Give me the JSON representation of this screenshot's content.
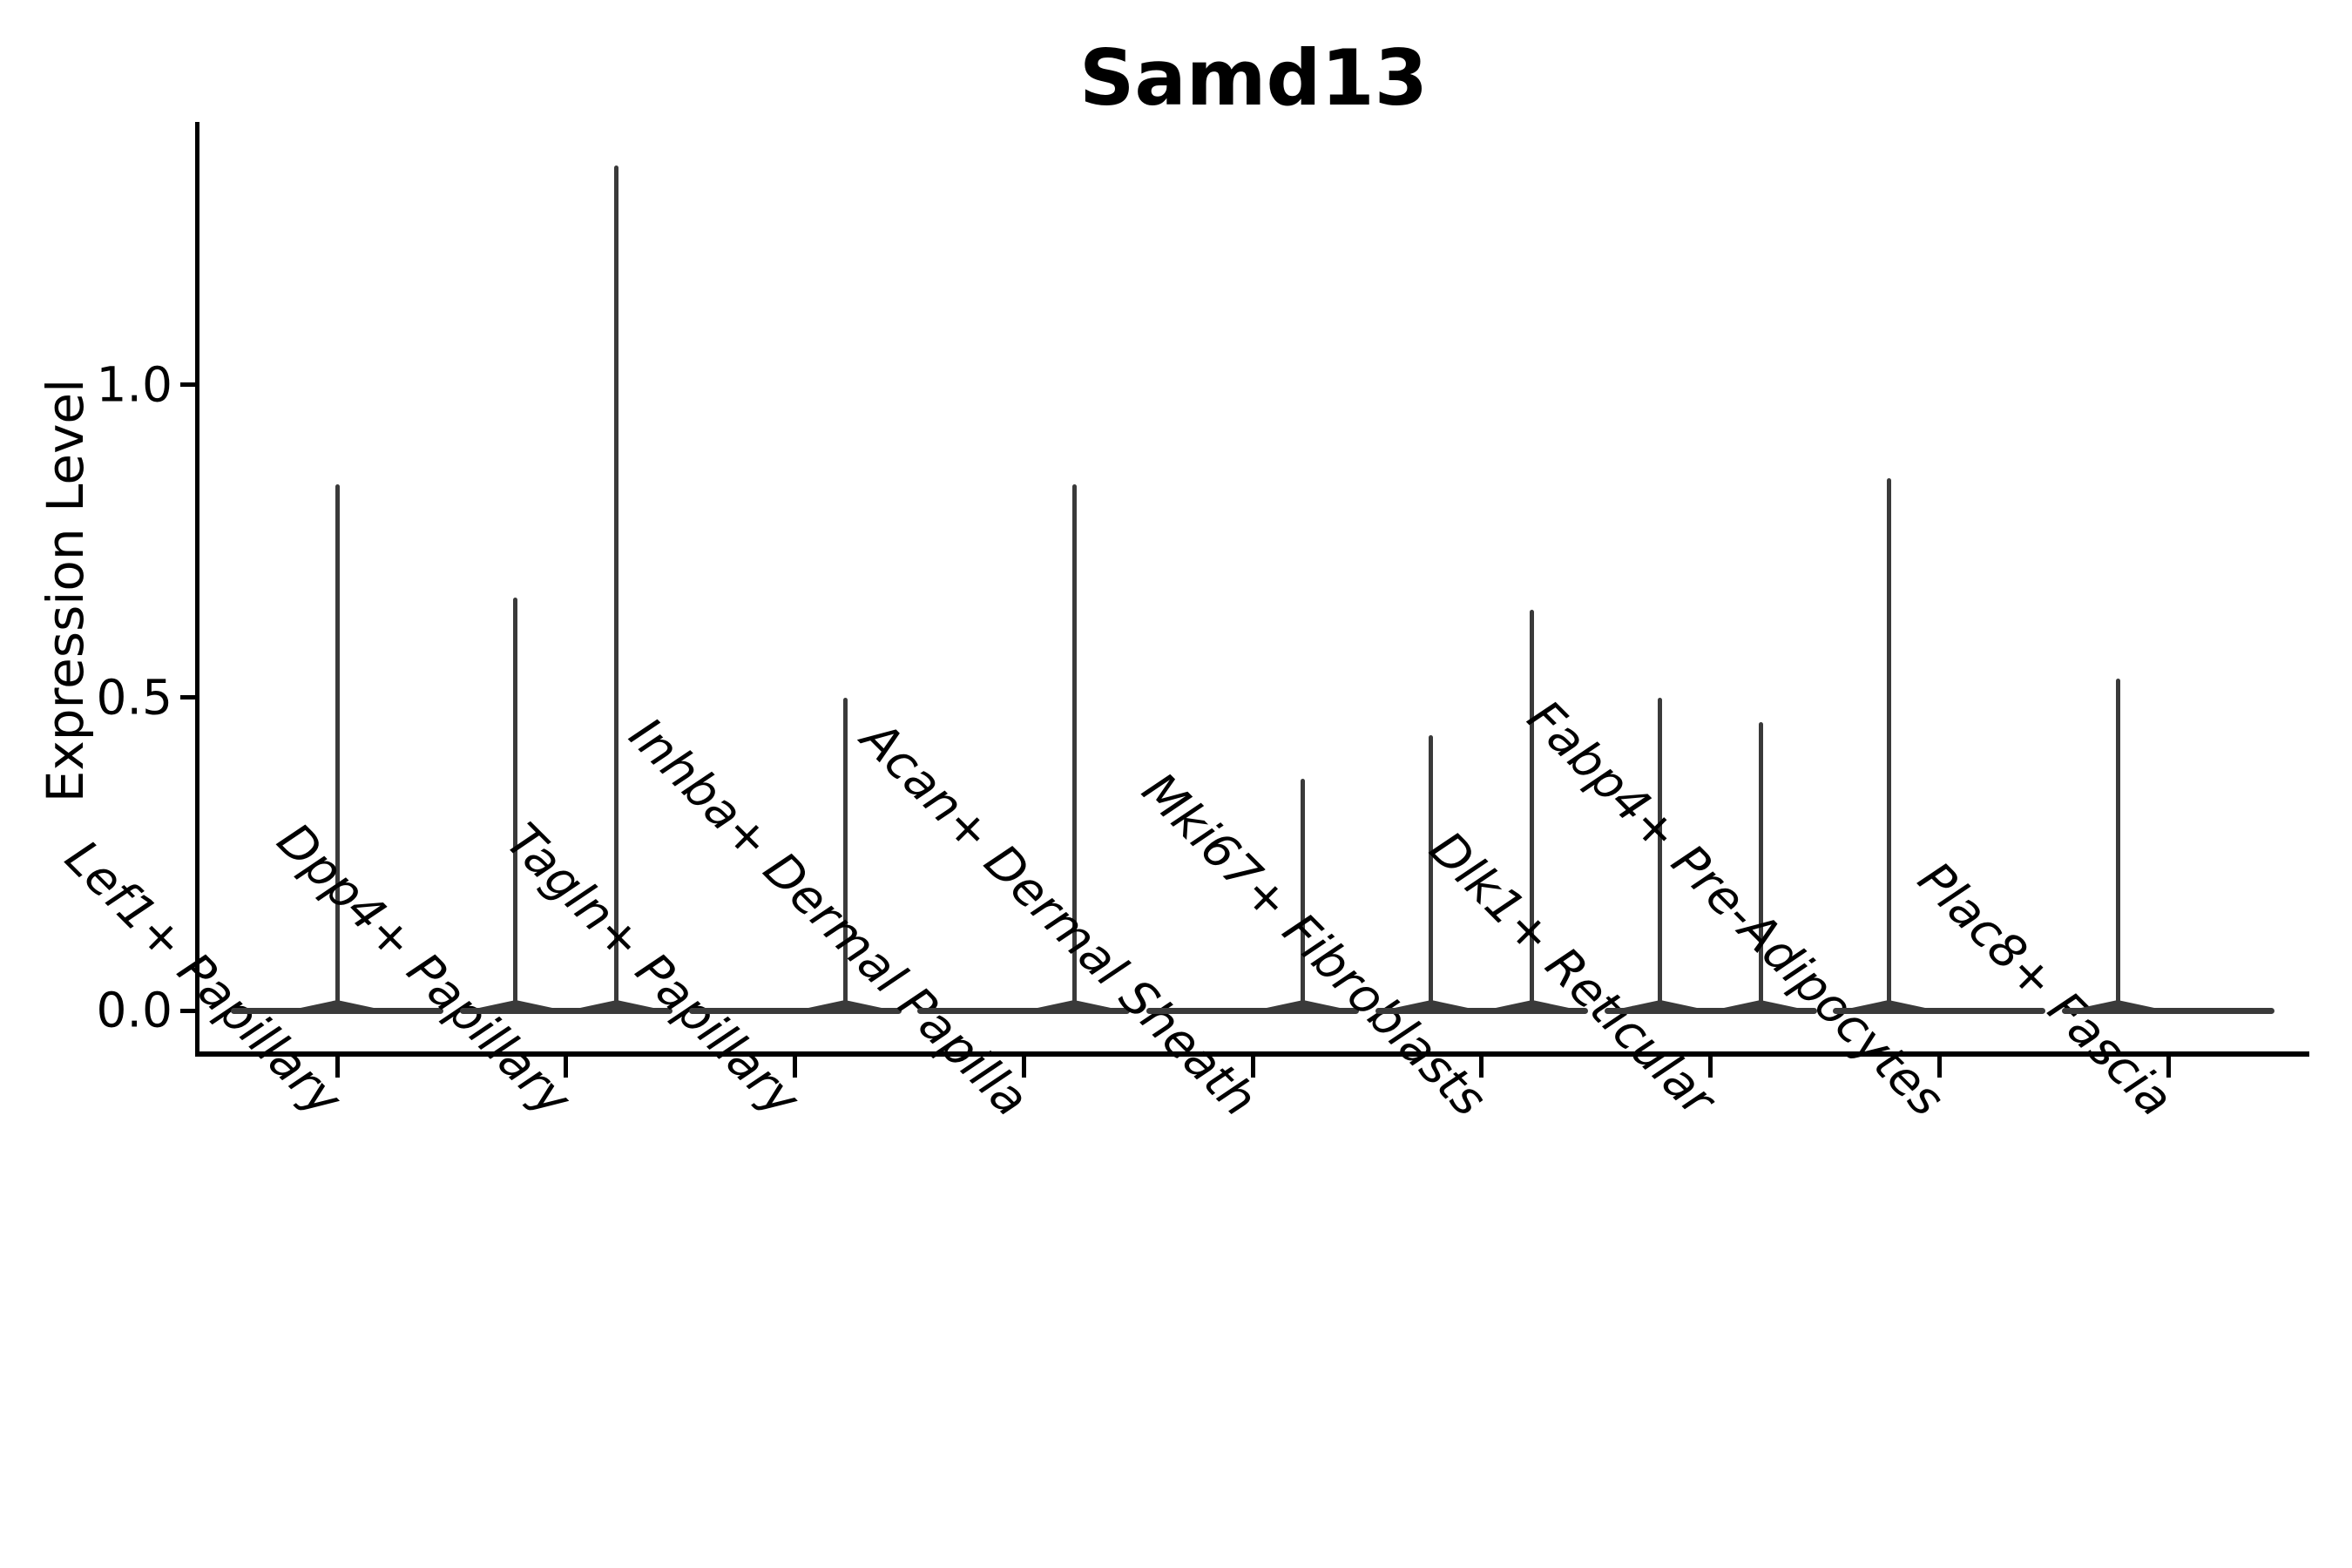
{
  "page": {
    "background": "#ffffff"
  },
  "chart_data": {
    "type": "violin",
    "title": "Samd13",
    "ylabel": "Expression Level",
    "xlabel": "",
    "grid": false,
    "legend": null,
    "ylim": [
      -0.07,
      1.42
    ],
    "ytick_values": [
      0.0,
      0.5,
      1.0
    ],
    "ytick_labels": [
      "0.0",
      "0.5",
      "1.0"
    ],
    "ink_color": "#3a3a3a",
    "axis_color": "#000000",
    "violin_style": "flat base at 0 with thin vertical density spikes reaching the maximum expression value",
    "categories": [
      {
        "label": "Lef1+ Papillary",
        "spikes": [
          {
            "dx": 0.0,
            "value": 0.84
          }
        ]
      },
      {
        "label": "Dpp4+ Papillary",
        "spikes": [
          {
            "dx": -0.22,
            "value": 0.66
          },
          {
            "dx": 0.22,
            "value": 1.35
          }
        ]
      },
      {
        "label": "Tagln+ Papillary",
        "spikes": [
          {
            "dx": 0.22,
            "value": 0.5
          }
        ]
      },
      {
        "label": "Inhba+ Dermal Papilla",
        "spikes": [
          {
            "dx": 0.22,
            "value": 0.84
          }
        ]
      },
      {
        "label": "Acan+ Dermal Sheath",
        "spikes": [
          {
            "dx": 0.22,
            "value": 0.37
          }
        ]
      },
      {
        "label": "Mki67+ Fibroblasts",
        "spikes": [
          {
            "dx": -0.22,
            "value": 0.44
          },
          {
            "dx": 0.22,
            "value": 0.64
          }
        ]
      },
      {
        "label": "Dlk1+ Reticular",
        "spikes": [
          {
            "dx": -0.22,
            "value": 0.5
          },
          {
            "dx": 0.22,
            "value": 0.46
          }
        ]
      },
      {
        "label": "Fabp4+ Pre-Adipocytes",
        "spikes": [
          {
            "dx": -0.22,
            "value": 0.85
          }
        ]
      },
      {
        "label": "Plac8+ Fascia",
        "spikes": [
          {
            "dx": -0.22,
            "value": 0.53
          }
        ]
      }
    ]
  }
}
